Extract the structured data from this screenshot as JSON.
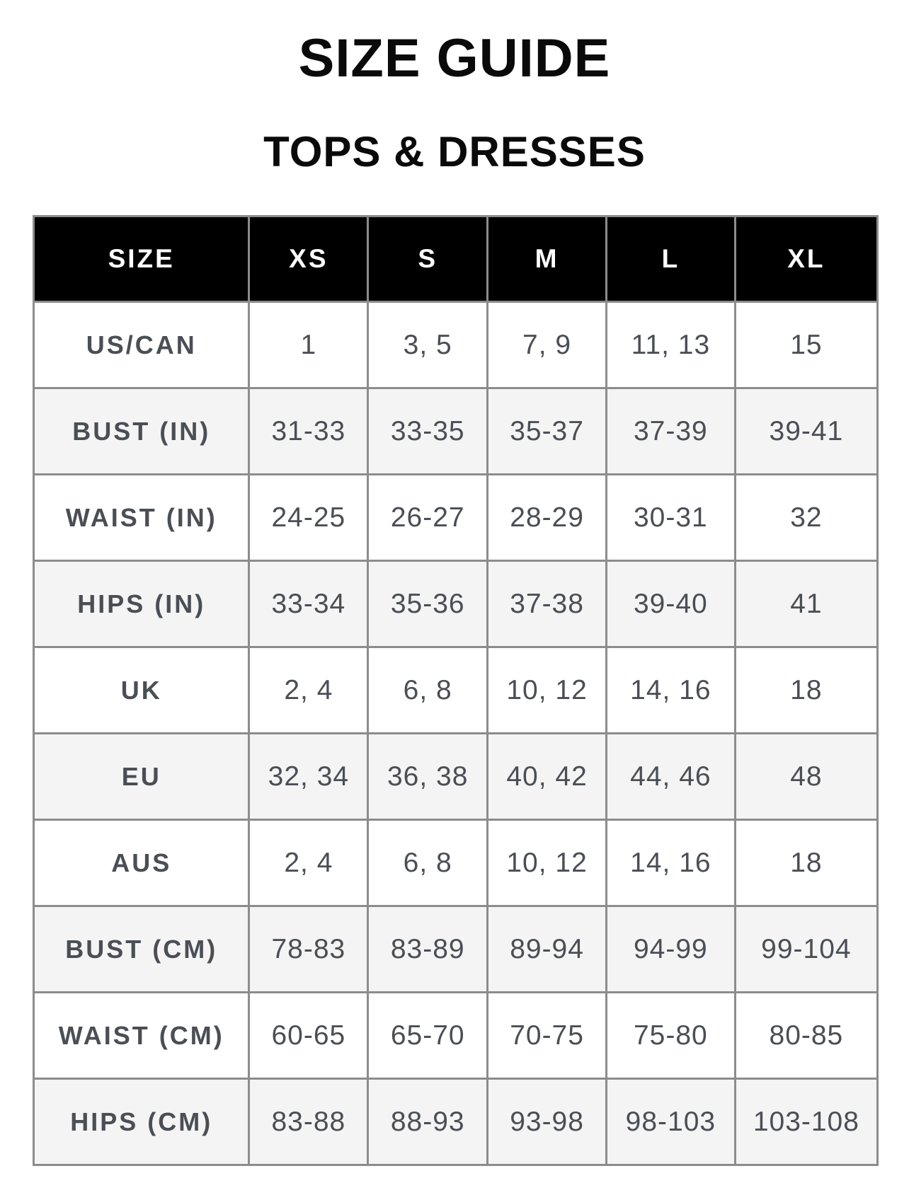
{
  "title": "SIZE GUIDE",
  "subtitle": "TOPS & DRESSES",
  "table": {
    "header": [
      "SIZE",
      "XS",
      "S",
      "M",
      "L",
      "XL"
    ],
    "rows": [
      {
        "label": "US/CAN",
        "values": [
          "1",
          "3, 5",
          "7, 9",
          "11, 13",
          "15"
        ]
      },
      {
        "label": "BUST (IN)",
        "values": [
          "31-33",
          "33-35",
          "35-37",
          "37-39",
          "39-41"
        ]
      },
      {
        "label": "WAIST (IN)",
        "values": [
          "24-25",
          "26-27",
          "28-29",
          "30-31",
          "32"
        ]
      },
      {
        "label": "HIPS (IN)",
        "values": [
          "33-34",
          "35-36",
          "37-38",
          "39-40",
          "41"
        ]
      },
      {
        "label": "UK",
        "values": [
          "2, 4",
          "6, 8",
          "10, 12",
          "14, 16",
          "18"
        ]
      },
      {
        "label": "EU",
        "values": [
          "32, 34",
          "36, 38",
          "40, 42",
          "44, 46",
          "48"
        ]
      },
      {
        "label": "AUS",
        "values": [
          "2, 4",
          "6, 8",
          "10, 12",
          "14, 16",
          "18"
        ]
      },
      {
        "label": "BUST (CM)",
        "values": [
          "78-83",
          "83-89",
          "89-94",
          "94-99",
          "99-104"
        ]
      },
      {
        "label": "WAIST (CM)",
        "values": [
          "60-65",
          "65-70",
          "70-75",
          "75-80",
          "80-85"
        ]
      },
      {
        "label": "HIPS (CM)",
        "values": [
          "83-88",
          "88-93",
          "93-98",
          "98-103",
          "103-108"
        ]
      }
    ]
  },
  "colors": {
    "header_background": "#000000",
    "header_text": "#ffffff",
    "body_text": "#4a4e55",
    "stripe_background": "#f4f4f4",
    "border": "#8c8c8c"
  }
}
